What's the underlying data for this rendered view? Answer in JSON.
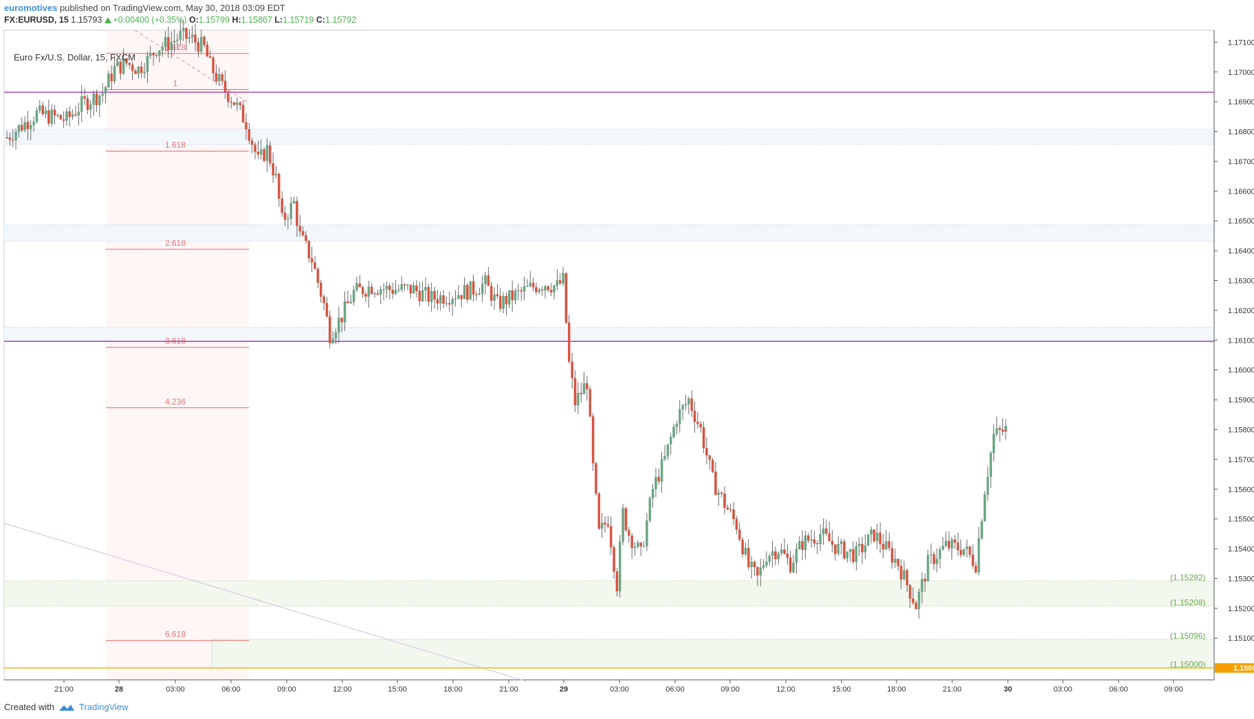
{
  "header": {
    "author": "euromotives",
    "published_text": "published on TradingView.com, May 30, 2018 03:09 EDT",
    "symbol": "FX:EURUSD, 15",
    "last": "1.15793",
    "change": "+0.00400 (+0.35%)",
    "o_label": "O:",
    "o_value": "1.15799",
    "h_label": "H:",
    "h_value": "1.15867",
    "l_label": "L:",
    "l_value": "1.15719",
    "c_label": "C:",
    "c_value": "1.15792"
  },
  "chart_data": {
    "type": "candlestick",
    "title": "Euro Fx/U.S. Dollar, 15, FXCM",
    "x_ticks": [
      "21:00",
      "28",
      "03:00",
      "06:00",
      "09:00",
      "12:00",
      "15:00",
      "18:00",
      "21:00",
      "29",
      "03:00",
      "06:00",
      "09:00",
      "12:00",
      "15:00",
      "18:00",
      "21:00",
      "30",
      "03:00",
      "06:00",
      "09:00"
    ],
    "y_ticks": [
      "1.17100",
      "1.17000",
      "1.16900",
      "1.16800",
      "1.16700",
      "1.16600",
      "1.16500",
      "1.16400",
      "1.16300",
      "1.16200",
      "1.16100",
      "1.16000",
      "1.15900",
      "1.15800",
      "1.15700",
      "1.15600",
      "1.15500",
      "1.15400",
      "1.15300",
      "1.15200",
      "1.15100"
    ],
    "ylim": [
      1.14965,
      1.17182
    ],
    "current_price": "1.15000",
    "fib_levels": [
      {
        "label": "0.618",
        "price": 1.17062
      },
      {
        "label": "1",
        "price": 1.16941
      },
      {
        "label": "1.618",
        "price": 1.16734
      },
      {
        "label": "2.618",
        "price": 1.16405
      },
      {
        "label": "3.618",
        "price": 1.16076
      },
      {
        "label": "4.236",
        "price": 1.15873
      },
      {
        "label": "6.618",
        "price": 1.15092
      }
    ],
    "horizontal_lines": [
      1.16932,
      1.16096
    ],
    "support_labels": [
      "(1.15292)",
      "(1.15208)",
      "(1.15096)",
      "(1.15000)"
    ],
    "zones": [
      {
        "from": 1.16757,
        "to": 1.16808
      },
      {
        "from": 1.16432,
        "to": 1.16487
      },
      {
        "from": 1.16096,
        "to": 1.16143
      },
      {
        "from": 1.15208,
        "to": 1.15292
      },
      {
        "from": 1.15,
        "to": 1.15096
      }
    ],
    "price_path": [
      [
        0,
        1.1678
      ],
      [
        10,
        1.1686
      ],
      [
        20,
        1.1684
      ],
      [
        25,
        1.1689
      ],
      [
        32,
        1.1693
      ],
      [
        36,
        1.1701
      ],
      [
        40,
        1.1703
      ],
      [
        44,
        1.1701
      ],
      [
        48,
        1.1705
      ],
      [
        50,
        1.1708
      ],
      [
        55,
        1.171
      ],
      [
        58,
        1.1712
      ],
      [
        62,
        1.1711
      ],
      [
        66,
        1.1708
      ],
      [
        68,
        1.1702
      ],
      [
        72,
        1.1695
      ],
      [
        76,
        1.169
      ],
      [
        80,
        1.1683
      ],
      [
        84,
        1.167
      ],
      [
        87,
        1.1674
      ],
      [
        90,
        1.1664
      ],
      [
        92,
        1.165
      ],
      [
        96,
        1.1656
      ],
      [
        98,
        1.1645
      ],
      [
        102,
        1.1637
      ],
      [
        106,
        1.1622
      ],
      [
        108,
        1.1612
      ],
      [
        112,
        1.1618
      ],
      [
        116,
        1.1626
      ],
      [
        122,
        1.1628
      ],
      [
        128,
        1.1627
      ],
      [
        136,
        1.1627
      ],
      [
        142,
        1.1624
      ],
      [
        148,
        1.1625
      ],
      [
        156,
        1.1627
      ],
      [
        160,
        1.1629
      ],
      [
        164,
        1.1622
      ],
      [
        168,
        1.1624
      ],
      [
        172,
        1.1626
      ],
      [
        176,
        1.1628
      ],
      [
        180,
        1.1629
      ],
      [
        184,
        1.1628
      ],
      [
        186,
        1.163
      ],
      [
        188,
        1.1602
      ],
      [
        190,
        1.1589
      ],
      [
        194,
        1.1596
      ],
      [
        196,
        1.1567
      ],
      [
        198,
        1.1545
      ],
      [
        201,
        1.155
      ],
      [
        204,
        1.1528
      ],
      [
        206,
        1.1552
      ],
      [
        208,
        1.1545
      ],
      [
        212,
        1.1538
      ],
      [
        216,
        1.156
      ],
      [
        220,
        1.157
      ],
      [
        224,
        1.1584
      ],
      [
        228,
        1.159
      ],
      [
        232,
        1.158
      ],
      [
        236,
        1.1563
      ],
      [
        240,
        1.1555
      ],
      [
        244,
        1.1548
      ],
      [
        248,
        1.1534
      ],
      [
        251,
        1.153
      ],
      [
        254,
        1.1538
      ],
      [
        258,
        1.154
      ],
      [
        262,
        1.1535
      ],
      [
        266,
        1.1542
      ],
      [
        272,
        1.1545
      ],
      [
        278,
        1.154
      ],
      [
        284,
        1.1538
      ],
      [
        290,
        1.1545
      ],
      [
        298,
        1.1535
      ],
      [
        304,
        1.1521
      ],
      [
        308,
        1.1535
      ],
      [
        314,
        1.1541
      ],
      [
        320,
        1.154
      ],
      [
        324,
        1.1535
      ],
      [
        327,
        1.156
      ],
      [
        330,
        1.1578
      ],
      [
        334,
        1.158
      ]
    ]
  },
  "footer": {
    "created_with": "Created with",
    "brand": "TradingView"
  }
}
